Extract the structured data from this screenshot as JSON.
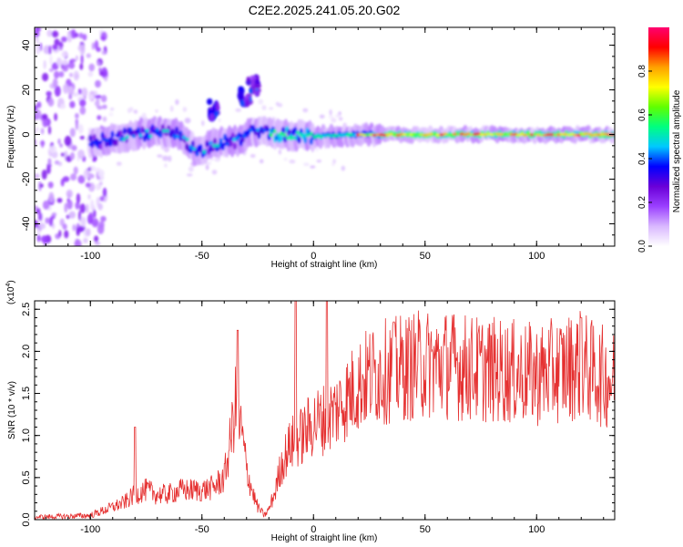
{
  "title": "C2E2.2025.241.05.20.G02",
  "chart_data": [
    {
      "type": "heatmap",
      "xlabel": "Height of straight line (km)",
      "ylabel": "Frequency (Hz)",
      "xlim": [
        -125,
        135
      ],
      "ylim": [
        -50,
        48
      ],
      "x_ticks": [
        -100,
        -50,
        0,
        50,
        100
      ],
      "x_tick_labels": [
        "-100",
        "-50",
        "0",
        "50",
        "100"
      ],
      "y_ticks": [
        -40,
        -20,
        0,
        20,
        40
      ],
      "y_tick_labels": [
        "-40",
        "-20",
        "0",
        "20",
        "40"
      ],
      "colorbar": {
        "label": "Normalized spectral amplitude",
        "range": [
          0,
          1
        ],
        "ticks": [
          0.0,
          0.2,
          0.4,
          0.6,
          0.8
        ],
        "tick_labels": [
          "0.0",
          "0.2",
          "0.4",
          "0.6",
          "0.8"
        ],
        "colormap": [
          "#ffffff",
          "#d9b8ff",
          "#9b40ff",
          "#6a00d8",
          "#0000ff",
          "#00c8ff",
          "#00ff80",
          "#60ff00",
          "#ffff00",
          "#ffa000",
          "#ff0000",
          "#ff0070"
        ]
      },
      "ridge": [
        {
          "x": -125,
          "f": 0
        },
        {
          "x": -110,
          "f": -5
        },
        {
          "x": -100,
          "f": -4
        },
        {
          "x": -90,
          "f": -2
        },
        {
          "x": -80,
          "f": 0
        },
        {
          "x": -70,
          "f": 1
        },
        {
          "x": -60,
          "f": 0
        },
        {
          "x": -52,
          "f": -8
        },
        {
          "x": -45,
          "f": -4
        },
        {
          "x": -35,
          "f": -3
        },
        {
          "x": -25,
          "f": 2
        },
        {
          "x": -15,
          "f": 0
        },
        {
          "x": 0,
          "f": -1
        },
        {
          "x": 20,
          "f": 0
        },
        {
          "x": 50,
          "f": 0
        },
        {
          "x": 100,
          "f": 0
        },
        {
          "x": 135,
          "f": 0
        }
      ],
      "secondary_features": [
        {
          "x": -27,
          "f": 22
        },
        {
          "x": -31,
          "f": 17
        },
        {
          "x": -45,
          "f": 11
        }
      ]
    },
    {
      "type": "line",
      "xlabel": "Height of straight line (km)",
      "ylabel": "SNR (10 * v/v)",
      "y_multiplier": "(x10",
      "y_multiplier_exp": "4",
      "y_multiplier_close": ")",
      "xlim": [
        -125,
        135
      ],
      "ylim": [
        0,
        2.6
      ],
      "x_ticks": [
        -100,
        -50,
        0,
        50,
        100
      ],
      "x_tick_labels": [
        "-100",
        "-50",
        "0",
        "50",
        "100"
      ],
      "y_ticks": [
        0.0,
        0.5,
        1.0,
        1.5,
        2.0,
        2.5
      ],
      "y_tick_labels": [
        "0.0",
        "0.5",
        "1.0",
        "1.5",
        "2.0",
        "2.5"
      ],
      "line_color": "#e53030",
      "series": [
        {
          "x": [
            -125,
            -110,
            -100,
            -95,
            -90,
            -85,
            -80,
            -75,
            -70,
            -65,
            -60,
            -55,
            -50,
            -45,
            -40,
            -38,
            -35,
            -32,
            -30,
            -27,
            -25,
            -22,
            -20,
            -17,
            -15,
            -12,
            -10,
            -5,
            0,
            5,
            10,
            15,
            20,
            25,
            30,
            40,
            50,
            60,
            70,
            80,
            90,
            100,
            110,
            120,
            125,
            130,
            135
          ],
          "values": [
            0.03,
            0.04,
            0.05,
            0.1,
            0.15,
            0.2,
            0.3,
            0.35,
            0.3,
            0.3,
            0.35,
            0.35,
            0.35,
            0.38,
            0.5,
            0.8,
            1.35,
            1.0,
            0.6,
            0.3,
            0.15,
            0.05,
            0.12,
            0.35,
            0.6,
            0.8,
            0.9,
            1.0,
            1.15,
            1.2,
            1.3,
            1.45,
            1.6,
            1.7,
            1.75,
            1.8,
            1.85,
            1.85,
            1.8,
            1.78,
            1.75,
            1.72,
            1.78,
            1.85,
            1.75,
            1.7,
            1.65
          ]
        }
      ],
      "peaks": [
        {
          "x": -80,
          "y": 1.1
        },
        {
          "x": -34,
          "y": 2.25
        },
        {
          "x": -8,
          "y": 2.6
        },
        {
          "x": 6,
          "y": 2.6
        },
        {
          "x": 36,
          "y": 2.35
        },
        {
          "x": 120,
          "y": 2.4
        }
      ]
    }
  ]
}
